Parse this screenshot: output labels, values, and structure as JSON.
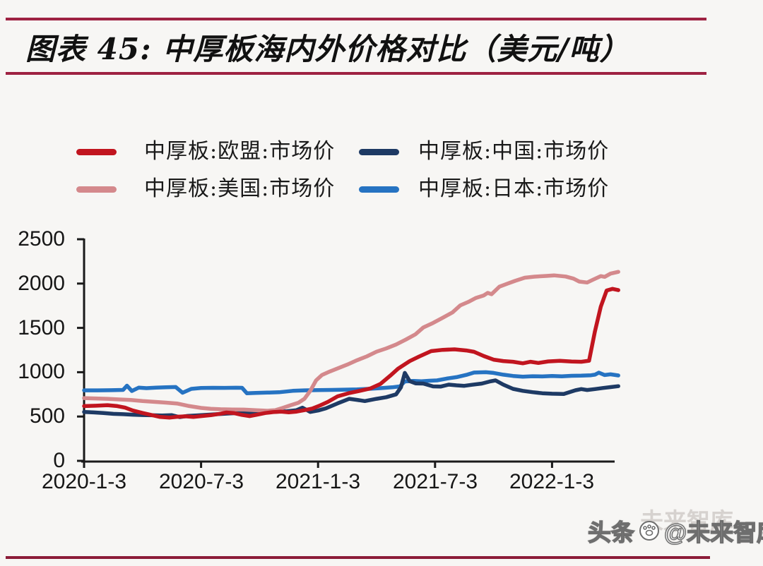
{
  "page": {
    "title": "图表 45:  中厚板海内外价格对比（美元/吨）",
    "rule_color": "#9e2242",
    "bottom_rule_color": "#8c1c38"
  },
  "watermark": {
    "site": "头条",
    "account": "@未来智库",
    "ghost": "未来智库"
  },
  "chart_data": {
    "type": "line",
    "figure_label": "图表 45",
    "title": "中厚板海内外价格对比",
    "unit": "美元/吨",
    "grid": false,
    "legend_position": "top",
    "axis_color": "#1a1a1a",
    "x_axis": {
      "x_unit": "months since 2020-1-3",
      "tick_labels": [
        "2020-1-3",
        "2020-7-3",
        "2021-1-3",
        "2021-7-3",
        "2022-1-3"
      ],
      "tick_months": [
        0,
        6,
        12,
        18,
        24
      ],
      "range_months": [
        0,
        27.4
      ]
    },
    "y_axis": {
      "tick_labels": [
        "0",
        "500",
        "1000",
        "1500",
        "2000",
        "2500"
      ],
      "ticks": [
        0,
        500,
        1000,
        1500,
        2000,
        2500
      ],
      "range": [
        0,
        2500
      ]
    },
    "series": [
      {
        "name": "中厚板:欧盟:市场价",
        "region": "EU",
        "color": "#c1151f",
        "points": [
          [
            0,
            618
          ],
          [
            0.6,
            622
          ],
          [
            1.2,
            628
          ],
          [
            1.7,
            618
          ],
          [
            2.1,
            600
          ],
          [
            2.5,
            568
          ],
          [
            3.0,
            540
          ],
          [
            3.5,
            515
          ],
          [
            3.9,
            495
          ],
          [
            4.4,
            488
          ],
          [
            4.8,
            498
          ],
          [
            5.2,
            502
          ],
          [
            5.6,
            495
          ],
          [
            6.0,
            505
          ],
          [
            6.5,
            515
          ],
          [
            7.0,
            532
          ],
          [
            7.3,
            545
          ],
          [
            7.7,
            538
          ],
          [
            8.1,
            518
          ],
          [
            8.5,
            505
          ],
          [
            8.9,
            522
          ],
          [
            9.3,
            540
          ],
          [
            9.7,
            550
          ],
          [
            10.1,
            555
          ],
          [
            10.5,
            548
          ],
          [
            10.9,
            556
          ],
          [
            11.3,
            572
          ],
          [
            11.7,
            590
          ],
          [
            12.1,
            625
          ],
          [
            12.5,
            665
          ],
          [
            13.0,
            728
          ],
          [
            13.6,
            765
          ],
          [
            14.1,
            788
          ],
          [
            14.7,
            818
          ],
          [
            15.2,
            868
          ],
          [
            15.7,
            960
          ],
          [
            16.1,
            1040
          ],
          [
            16.7,
            1125
          ],
          [
            17.2,
            1178
          ],
          [
            17.8,
            1238
          ],
          [
            18.4,
            1252
          ],
          [
            19.0,
            1258
          ],
          [
            19.6,
            1245
          ],
          [
            20.0,
            1230
          ],
          [
            20.5,
            1182
          ],
          [
            21.0,
            1142
          ],
          [
            21.5,
            1126
          ],
          [
            22.0,
            1118
          ],
          [
            22.5,
            1100
          ],
          [
            22.9,
            1118
          ],
          [
            23.3,
            1104
          ],
          [
            23.8,
            1122
          ],
          [
            24.4,
            1128
          ],
          [
            25.0,
            1120
          ],
          [
            25.5,
            1118
          ],
          [
            25.9,
            1130
          ],
          [
            26.2,
            1460
          ],
          [
            26.5,
            1740
          ],
          [
            26.8,
            1922
          ],
          [
            27.1,
            1940
          ],
          [
            27.4,
            1926
          ]
        ]
      },
      {
        "name": "中厚板:中国:市场价",
        "region": "China",
        "color": "#1e3a64",
        "points": [
          [
            0,
            552
          ],
          [
            0.5,
            546
          ],
          [
            1.0,
            540
          ],
          [
            1.5,
            530
          ],
          [
            2.0,
            526
          ],
          [
            2.5,
            521
          ],
          [
            3.0,
            517
          ],
          [
            3.5,
            514
          ],
          [
            4.0,
            511
          ],
          [
            4.5,
            515
          ],
          [
            4.9,
            494
          ],
          [
            5.3,
            506
          ],
          [
            5.8,
            513
          ],
          [
            6.3,
            519
          ],
          [
            6.9,
            528
          ],
          [
            7.5,
            536
          ],
          [
            8.0,
            541
          ],
          [
            8.6,
            545
          ],
          [
            9.2,
            548
          ],
          [
            9.8,
            553
          ],
          [
            10.4,
            560
          ],
          [
            10.9,
            572
          ],
          [
            11.2,
            600
          ],
          [
            11.6,
            552
          ],
          [
            12.0,
            568
          ],
          [
            12.4,
            592
          ],
          [
            13.0,
            648
          ],
          [
            13.6,
            700
          ],
          [
            14.0,
            688
          ],
          [
            14.4,
            674
          ],
          [
            15.0,
            700
          ],
          [
            15.5,
            718
          ],
          [
            16.0,
            750
          ],
          [
            16.25,
            830
          ],
          [
            16.45,
            992
          ],
          [
            16.7,
            900
          ],
          [
            17.0,
            874
          ],
          [
            17.4,
            872
          ],
          [
            17.9,
            840
          ],
          [
            18.3,
            838
          ],
          [
            18.7,
            860
          ],
          [
            19.1,
            852
          ],
          [
            19.5,
            846
          ],
          [
            19.9,
            858
          ],
          [
            20.4,
            872
          ],
          [
            20.8,
            895
          ],
          [
            21.1,
            908
          ],
          [
            21.5,
            860
          ],
          [
            22.0,
            812
          ],
          [
            22.5,
            790
          ],
          [
            23.0,
            775
          ],
          [
            23.5,
            763
          ],
          [
            24.0,
            757
          ],
          [
            24.6,
            754
          ],
          [
            25.2,
            796
          ],
          [
            25.5,
            810
          ],
          [
            25.8,
            799
          ],
          [
            26.2,
            810
          ],
          [
            26.6,
            822
          ],
          [
            27.0,
            832
          ],
          [
            27.4,
            842
          ]
        ]
      },
      {
        "name": "中厚板:美国:市场价",
        "region": "US",
        "color": "#d4898c",
        "points": [
          [
            0,
            708
          ],
          [
            0.6,
            704
          ],
          [
            1.2,
            700
          ],
          [
            1.8,
            693
          ],
          [
            2.4,
            686
          ],
          [
            3.0,
            674
          ],
          [
            3.6,
            666
          ],
          [
            4.2,
            657
          ],
          [
            4.8,
            646
          ],
          [
            5.4,
            618
          ],
          [
            6.0,
            597
          ],
          [
            6.5,
            587
          ],
          [
            7.0,
            582
          ],
          [
            7.6,
            580
          ],
          [
            8.2,
            578
          ],
          [
            8.8,
            572
          ],
          [
            9.4,
            565
          ],
          [
            9.8,
            572
          ],
          [
            10.2,
            598
          ],
          [
            10.6,
            628
          ],
          [
            11.0,
            656
          ],
          [
            11.3,
            700
          ],
          [
            11.6,
            790
          ],
          [
            11.9,
            908
          ],
          [
            12.2,
            968
          ],
          [
            12.6,
            1008
          ],
          [
            13.0,
            1042
          ],
          [
            13.5,
            1086
          ],
          [
            14.0,
            1135
          ],
          [
            14.5,
            1178
          ],
          [
            15.0,
            1232
          ],
          [
            15.5,
            1268
          ],
          [
            16.0,
            1312
          ],
          [
            16.5,
            1368
          ],
          [
            17.0,
            1428
          ],
          [
            17.4,
            1505
          ],
          [
            17.9,
            1556
          ],
          [
            18.4,
            1615
          ],
          [
            18.9,
            1675
          ],
          [
            19.3,
            1755
          ],
          [
            19.7,
            1792
          ],
          [
            20.1,
            1838
          ],
          [
            20.5,
            1866
          ],
          [
            20.7,
            1895
          ],
          [
            20.9,
            1880
          ],
          [
            21.3,
            1965
          ],
          [
            21.7,
            1998
          ],
          [
            22.1,
            2030
          ],
          [
            22.6,
            2066
          ],
          [
            23.1,
            2078
          ],
          [
            23.7,
            2086
          ],
          [
            24.1,
            2092
          ],
          [
            24.7,
            2080
          ],
          [
            25.1,
            2056
          ],
          [
            25.4,
            2022
          ],
          [
            25.8,
            2012
          ],
          [
            26.1,
            2044
          ],
          [
            26.5,
            2084
          ],
          [
            26.7,
            2076
          ],
          [
            27.0,
            2112
          ],
          [
            27.4,
            2132
          ]
        ]
      },
      {
        "name": "中厚板:日本:市场价",
        "region": "Japan",
        "color": "#2673c2",
        "points": [
          [
            0,
            795
          ],
          [
            0.7,
            795
          ],
          [
            1.4,
            797
          ],
          [
            2.0,
            800
          ],
          [
            2.2,
            848
          ],
          [
            2.45,
            788
          ],
          [
            2.8,
            826
          ],
          [
            3.2,
            820
          ],
          [
            3.7,
            826
          ],
          [
            4.2,
            830
          ],
          [
            4.7,
            833
          ],
          [
            5.05,
            768
          ],
          [
            5.5,
            812
          ],
          [
            6.0,
            822
          ],
          [
            6.6,
            824
          ],
          [
            7.2,
            823
          ],
          [
            7.8,
            825
          ],
          [
            8.1,
            824
          ],
          [
            8.35,
            762
          ],
          [
            8.8,
            766
          ],
          [
            9.4,
            770
          ],
          [
            10.0,
            774
          ],
          [
            10.7,
            790
          ],
          [
            11.3,
            795
          ],
          [
            12.0,
            798
          ],
          [
            12.7,
            800
          ],
          [
            13.4,
            803
          ],
          [
            14.0,
            806
          ],
          [
            14.6,
            812
          ],
          [
            15.2,
            820
          ],
          [
            15.8,
            830
          ],
          [
            16.2,
            840
          ],
          [
            16.45,
            896
          ],
          [
            16.9,
            902
          ],
          [
            17.3,
            898
          ],
          [
            17.7,
            904
          ],
          [
            18.1,
            908
          ],
          [
            18.6,
            928
          ],
          [
            19.1,
            944
          ],
          [
            19.6,
            970
          ],
          [
            20.0,
            996
          ],
          [
            20.6,
            1000
          ],
          [
            21.0,
            992
          ],
          [
            21.5,
            972
          ],
          [
            22.0,
            958
          ],
          [
            22.5,
            950
          ],
          [
            23.0,
            955
          ],
          [
            23.5,
            952
          ],
          [
            24.0,
            957
          ],
          [
            24.5,
            954
          ],
          [
            25.0,
            959
          ],
          [
            25.5,
            961
          ],
          [
            26.0,
            966
          ],
          [
            26.2,
            972
          ],
          [
            26.4,
            995
          ],
          [
            26.7,
            968
          ],
          [
            27.0,
            976
          ],
          [
            27.4,
            963
          ]
        ]
      }
    ]
  }
}
